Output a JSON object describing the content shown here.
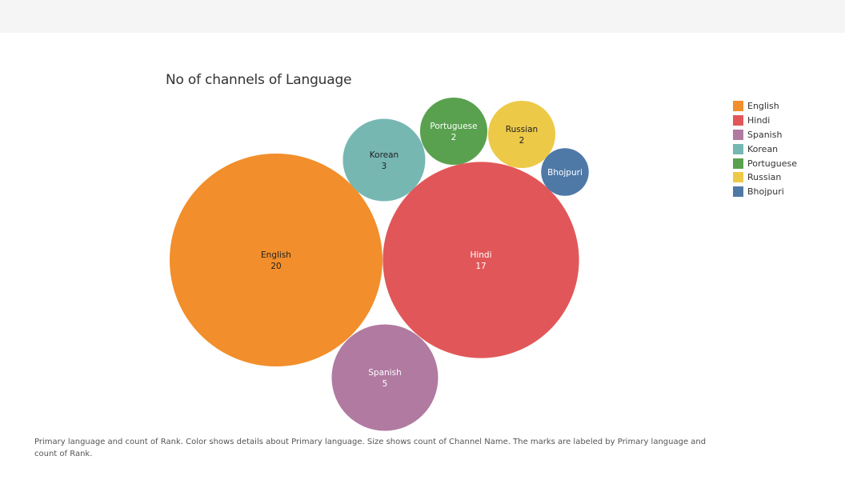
{
  "chart_data": {
    "type": "bubble",
    "title": "No of channels of Language",
    "series": [
      {
        "name": "English",
        "value": 20,
        "color": "#f28e2b",
        "label_color": "#222222"
      },
      {
        "name": "Hindi",
        "value": 17,
        "color": "#e15759",
        "label_color": "#ffffff"
      },
      {
        "name": "Spanish",
        "value": 5,
        "color": "#b07aa1",
        "label_color": "#ffffff"
      },
      {
        "name": "Korean",
        "value": 3,
        "color": "#76b7b2",
        "label_color": "#222222"
      },
      {
        "name": "Portuguese",
        "value": 2,
        "color": "#59a14f",
        "label_color": "#ffffff"
      },
      {
        "name": "Russian",
        "value": 2,
        "color": "#edc948",
        "label_color": "#222222"
      },
      {
        "name": "Bhojpuri",
        "value": 1,
        "color": "#4e79a7",
        "label_color": "#ffffff"
      }
    ],
    "legend_position": "right"
  },
  "caption": "Primary language and count of Rank.  Color shows details about Primary language.  Size shows count of Channel Name.  The marks are labeled by Primary language and count of Rank."
}
